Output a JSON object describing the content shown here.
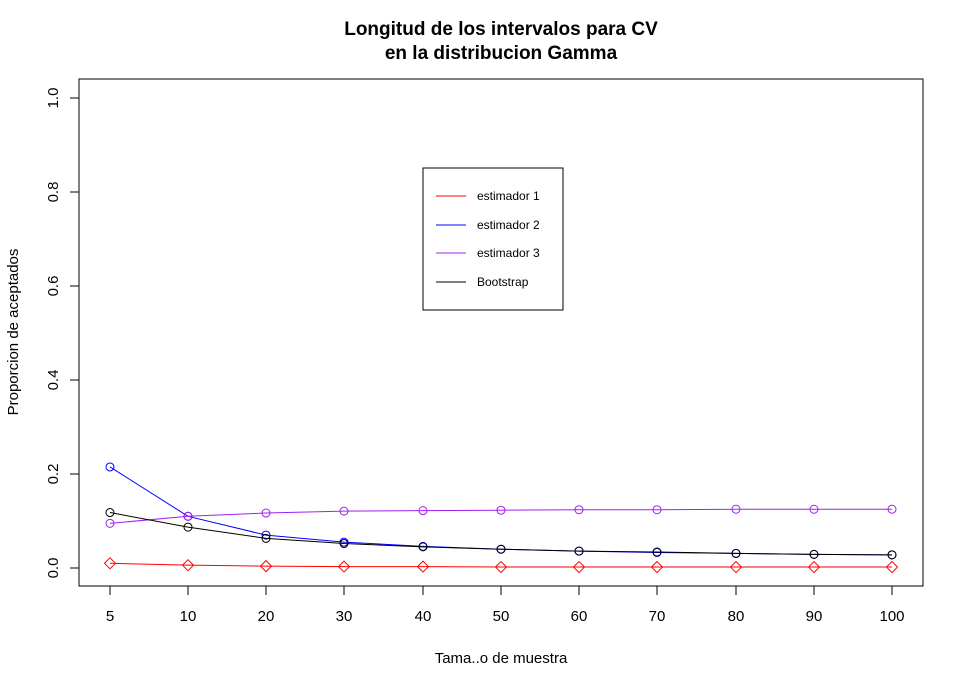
{
  "chart_data": {
    "type": "line",
    "title_line1": "Longitud de los intervalos para CV",
    "title_line2": "en la distribucion Gamma",
    "xlabel": "Tama..o de muestra",
    "ylabel": "Proporcion de aceptados",
    "categories": [
      "5",
      "10",
      "20",
      "30",
      "40",
      "50",
      "60",
      "70",
      "80",
      "90",
      "100"
    ],
    "ylim": [
      0,
      1
    ],
    "yticks": [
      0.0,
      0.2,
      0.4,
      0.6,
      0.8,
      1.0
    ],
    "ytick_labels": [
      "0.0",
      "0.2",
      "0.4",
      "0.6",
      "0.8",
      "1.0"
    ],
    "grid": false,
    "legend_position": "top-center",
    "series": [
      {
        "name": "estimador 1",
        "color": "#ff0000",
        "marker": "diamond",
        "values": [
          0.01,
          0.006,
          0.004,
          0.003,
          0.003,
          0.002,
          0.002,
          0.002,
          0.002,
          0.002,
          0.002
        ]
      },
      {
        "name": "estimador 2",
        "color": "#0000ff",
        "marker": "circle",
        "values": [
          0.215,
          0.11,
          0.07,
          0.055,
          0.046,
          0.04,
          0.036,
          0.033,
          0.031,
          0.029,
          0.028
        ]
      },
      {
        "name": "estimador 3",
        "color": "#a020f0",
        "marker": "circle",
        "values": [
          0.095,
          0.11,
          0.117,
          0.121,
          0.122,
          0.123,
          0.124,
          0.124,
          0.125,
          0.125,
          0.125
        ]
      },
      {
        "name": "Bootstrap",
        "color": "#000000",
        "marker": "circle",
        "values": [
          0.118,
          0.087,
          0.063,
          0.052,
          0.045,
          0.04,
          0.036,
          0.034,
          0.031,
          0.029,
          0.028
        ]
      }
    ]
  }
}
